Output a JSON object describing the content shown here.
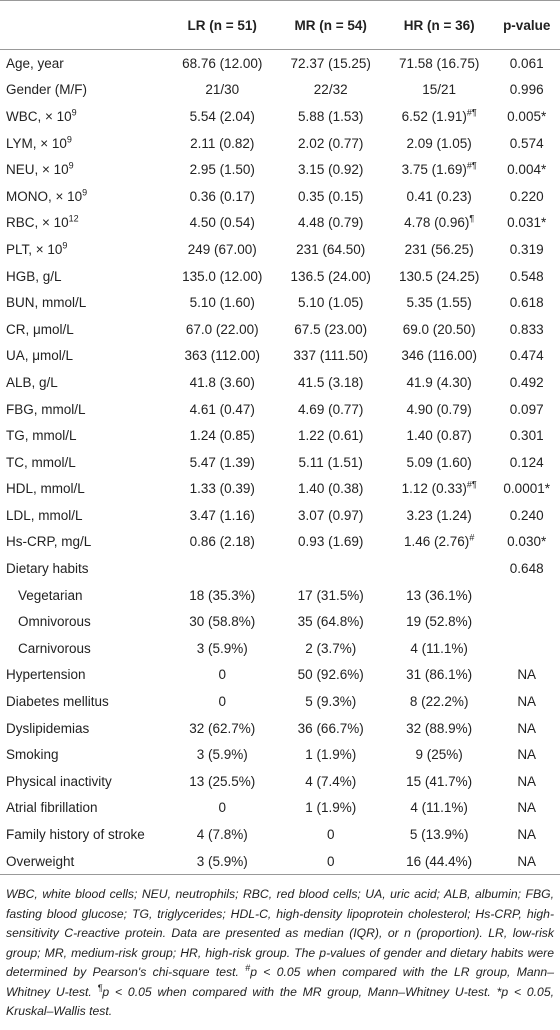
{
  "table": {
    "header": [
      "LR (n = 51)",
      "MR (n = 54)",
      "HR (n = 36)",
      "p-value"
    ],
    "rows": [
      {
        "label": "Age, year",
        "cells": [
          "68.76 (12.00)",
          "72.37 (15.25)",
          "71.58 (16.75)",
          "0.061"
        ]
      },
      {
        "label": "Gender (M/F)",
        "cells": [
          "21/30",
          "22/32",
          "15/21",
          "0.996"
        ]
      },
      {
        "label": "WBC, × 10",
        "label_sup": "9",
        "cells": [
          "5.54 (2.04)",
          "5.88 (1.53)",
          "6.52 (1.91)",
          "0.005*"
        ],
        "hr_sup": "#¶"
      },
      {
        "label": "LYM, × 10",
        "label_sup": "9",
        "cells": [
          "2.11 (0.82)",
          "2.02 (0.77)",
          "2.09 (1.05)",
          "0.574"
        ]
      },
      {
        "label": "NEU, × 10",
        "label_sup": "9",
        "cells": [
          "2.95 (1.50)",
          "3.15 (0.92)",
          "3.75 (1.69)",
          "0.004*"
        ],
        "hr_sup": "#¶"
      },
      {
        "label": "MONO, × 10",
        "label_sup": "9",
        "cells": [
          "0.36 (0.17)",
          "0.35 (0.15)",
          "0.41 (0.23)",
          "0.220"
        ]
      },
      {
        "label": "RBC, × 10",
        "label_sup": "12",
        "cells": [
          "4.50 (0.54)",
          "4.48 (0.79)",
          "4.78 (0.96)",
          "0.031*"
        ],
        "hr_sup": "¶"
      },
      {
        "label": "PLT, × 10",
        "label_sup": "9",
        "cells": [
          "249 (67.00)",
          "231 (64.50)",
          "231 (56.25)",
          "0.319"
        ]
      },
      {
        "label": "HGB, g/L",
        "cells": [
          "135.0 (12.00)",
          "136.5 (24.00)",
          "130.5 (24.25)",
          "0.548"
        ]
      },
      {
        "label": "BUN, mmol/L",
        "cells": [
          "5.10 (1.60)",
          "5.10 (1.05)",
          "5.35 (1.55)",
          "0.618"
        ]
      },
      {
        "label": "CR, μmol/L",
        "cells": [
          "67.0 (22.00)",
          "67.5 (23.00)",
          "69.0 (20.50)",
          "0.833"
        ]
      },
      {
        "label": "UA, μmol/L",
        "cells": [
          "363 (112.00)",
          "337 (111.50)",
          "346 (116.00)",
          "0.474"
        ]
      },
      {
        "label": "ALB, g/L",
        "cells": [
          "41.8 (3.60)",
          "41.5 (3.18)",
          "41.9 (4.30)",
          "0.492"
        ]
      },
      {
        "label": "FBG, mmol/L",
        "cells": [
          "4.61 (0.47)",
          "4.69 (0.77)",
          "4.90 (0.79)",
          "0.097"
        ]
      },
      {
        "label": "TG, mmol/L",
        "cells": [
          "1.24 (0.85)",
          "1.22 (0.61)",
          "1.40 (0.87)",
          "0.301"
        ]
      },
      {
        "label": "TC, mmol/L",
        "cells": [
          "5.47 (1.39)",
          "5.11 (1.51)",
          "5.09 (1.60)",
          "0.124"
        ]
      },
      {
        "label": "HDL, mmol/L",
        "cells": [
          "1.33 (0.39)",
          "1.40 (0.38)",
          "1.12 (0.33)",
          "0.0001*"
        ],
        "hr_sup": "#¶"
      },
      {
        "label": "LDL, mmol/L",
        "cells": [
          "3.47 (1.16)",
          "3.07 (0.97)",
          "3.23 (1.24)",
          "0.240"
        ]
      },
      {
        "label": "Hs-CRP, mg/L",
        "cells": [
          "0.86 (2.18)",
          "0.93 (1.69)",
          "1.46 (2.76)",
          "0.030*"
        ],
        "hr_sup": "#"
      },
      {
        "label": "Dietary habits",
        "cells": [
          null,
          null,
          null,
          "0.648"
        ]
      },
      {
        "label": "Vegetarian",
        "indent": true,
        "cells": [
          "18 (35.3%)",
          "17 (31.5%)",
          "13 (36.1%)",
          null
        ]
      },
      {
        "label": "Omnivorous",
        "indent": true,
        "cells": [
          "30 (58.8%)",
          "35 (64.8%)",
          "19 (52.8%)",
          null
        ]
      },
      {
        "label": "Carnivorous",
        "indent": true,
        "cells": [
          "3 (5.9%)",
          "2 (3.7%)",
          "4 (11.1%)",
          null
        ]
      },
      {
        "label": "Hypertension",
        "cells": [
          "0",
          "50 (92.6%)",
          "31 (86.1%)",
          "NA"
        ]
      },
      {
        "label": "Diabetes mellitus",
        "cells": [
          "0",
          "5 (9.3%)",
          "8 (22.2%)",
          "NA"
        ]
      },
      {
        "label": "Dyslipidemias",
        "cells": [
          "32 (62.7%)",
          "36 (66.7%)",
          "32 (88.9%)",
          "NA"
        ]
      },
      {
        "label": "Smoking",
        "cells": [
          "3 (5.9%)",
          "1 (1.9%)",
          "9 (25%)",
          "NA"
        ]
      },
      {
        "label": "Physical inactivity",
        "cells": [
          "13 (25.5%)",
          "4 (7.4%)",
          "15 (41.7%)",
          "NA"
        ]
      },
      {
        "label": "Atrial fibrillation",
        "cells": [
          "0",
          "1 (1.9%)",
          "4 (11.1%)",
          "NA"
        ]
      },
      {
        "label": "Family history of stroke",
        "cells": [
          "4 (7.8%)",
          "0",
          "5 (13.9%)",
          "NA"
        ]
      },
      {
        "label": "Overweight",
        "cells": [
          "3 (5.9%)",
          "0",
          "16 (44.4%)",
          "NA"
        ]
      }
    ],
    "footnote": [
      "WBC, white blood cells; NEU, neutrophils; RBC, red blood cells; UA, uric acid; ALB, albumin; FBG, fasting blood glucose; TG, triglycerides; HDL-C, high-density lipoprotein cholesterol; Hs-CRP, high-sensitivity C-reactive protein. Data are presented as median (IQR), or n (proportion). LR, low-risk group; MR, medium-risk group; HR, high-risk group. The p-values of gender and dietary habits were determined by Pearson's chi-square test. ",
      "#",
      "p < 0.05 when compared with the LR group, Mann–Whitney U-test. ",
      "¶",
      "p < 0.05 when compared with the MR group, Mann–Whitney U-test. *p < 0.05, Kruskal–Wallis test."
    ]
  }
}
